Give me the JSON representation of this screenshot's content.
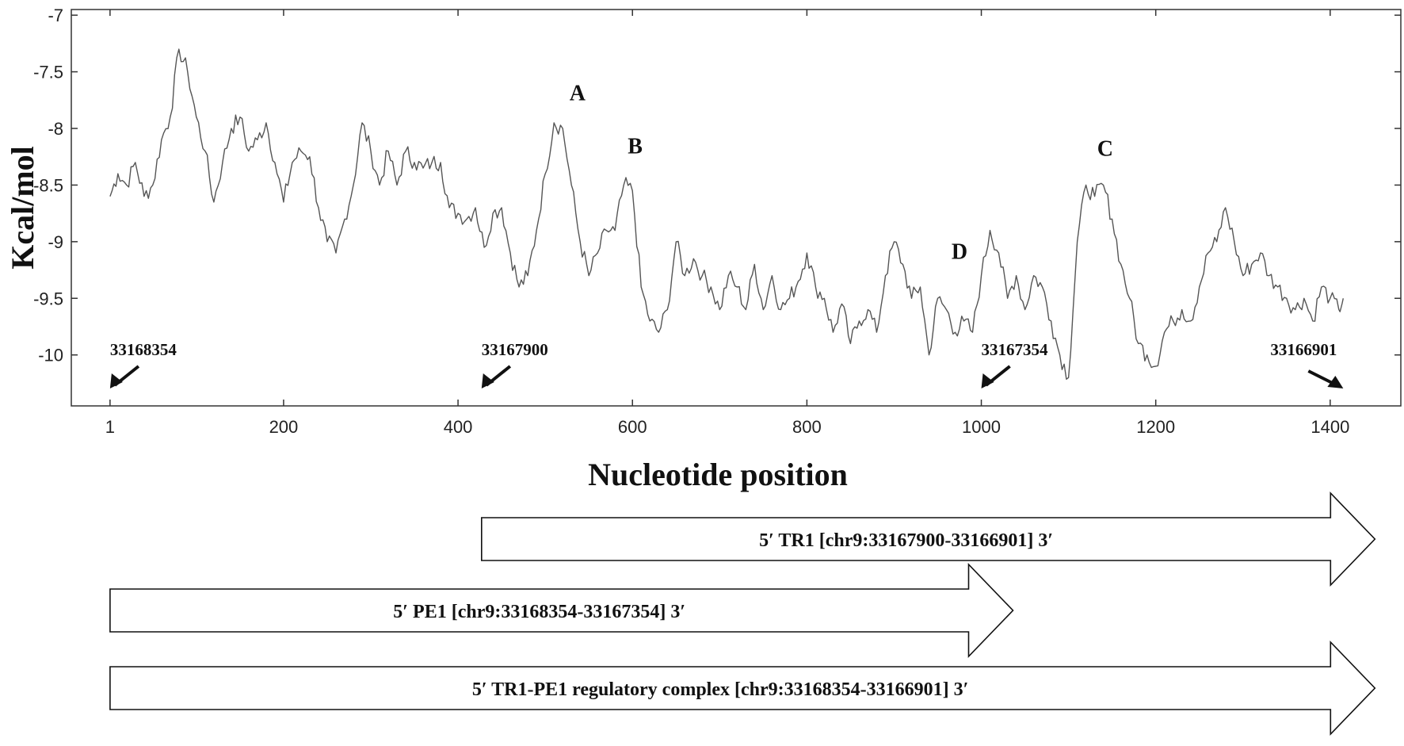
{
  "chart_data": {
    "type": "line",
    "xlabel": "Nucleotide position",
    "ylabel": "Kcal/mol",
    "xlim": [
      1,
      1450
    ],
    "ylim": [
      -10.45,
      -6.95
    ],
    "x_ticks": [
      1,
      200,
      400,
      600,
      800,
      1000,
      1200,
      1400
    ],
    "x_tick_labels": [
      "1",
      "200",
      "400",
      "600",
      "800",
      "1000",
      "1200",
      "1400"
    ],
    "y_ticks": [
      -7,
      -7.5,
      -8,
      -8.5,
      -9,
      -9.5,
      -10
    ],
    "y_tick_labels": [
      "-7",
      "-7.5",
      "-8",
      "-8.5",
      "-9",
      "-9.5",
      "-10"
    ],
    "grid": false,
    "series": [
      {
        "x": [
          1,
          10,
          20,
          30,
          40,
          50,
          60,
          70,
          80,
          90,
          100,
          110,
          120,
          130,
          140,
          150,
          160,
          170,
          180,
          190,
          200,
          210,
          220,
          230,
          240,
          250,
          260,
          270,
          280,
          290,
          300,
          310,
          320,
          330,
          340,
          350,
          360,
          370,
          380,
          390,
          400,
          410,
          420,
          430,
          440,
          450,
          460,
          470,
          480,
          490,
          500,
          510,
          520,
          530,
          540,
          550,
          560,
          570,
          580,
          590,
          600,
          610,
          620,
          630,
          640,
          650,
          660,
          670,
          680,
          690,
          700,
          710,
          720,
          730,
          740,
          750,
          760,
          770,
          780,
          790,
          800,
          810,
          820,
          830,
          840,
          850,
          860,
          870,
          880,
          890,
          900,
          910,
          920,
          930,
          940,
          950,
          960,
          970,
          980,
          990,
          1000,
          1010,
          1020,
          1030,
          1040,
          1050,
          1060,
          1070,
          1080,
          1090,
          1100,
          1110,
          1120,
          1130,
          1140,
          1150,
          1160,
          1170,
          1180,
          1190,
          1200,
          1210,
          1220,
          1230,
          1240,
          1250,
          1260,
          1270,
          1280,
          1290,
          1300,
          1310,
          1320,
          1330,
          1340,
          1350,
          1360,
          1370,
          1380,
          1390,
          1400,
          1410,
          1415
        ],
        "values": [
          -8.6,
          -8.4,
          -8.5,
          -8.3,
          -8.6,
          -8.5,
          -8.1,
          -7.9,
          -7.3,
          -7.5,
          -7.9,
          -8.2,
          -8.65,
          -8.3,
          -8.0,
          -7.9,
          -8.2,
          -8.1,
          -7.95,
          -8.3,
          -8.65,
          -8.3,
          -8.2,
          -8.25,
          -8.7,
          -9.0,
          -9.1,
          -8.8,
          -8.5,
          -7.95,
          -8.2,
          -8.5,
          -8.2,
          -8.5,
          -8.2,
          -8.3,
          -8.35,
          -8.3,
          -8.3,
          -8.7,
          -8.75,
          -8.8,
          -8.7,
          -9.05,
          -8.75,
          -8.7,
          -9.1,
          -9.4,
          -9.3,
          -8.9,
          -8.4,
          -7.95,
          -8.0,
          -8.5,
          -9.0,
          -9.3,
          -9.1,
          -8.9,
          -8.9,
          -8.5,
          -8.55,
          -9.4,
          -9.7,
          -9.8,
          -9.6,
          -9.0,
          -9.3,
          -9.15,
          -9.3,
          -9.4,
          -9.6,
          -9.3,
          -9.4,
          -9.6,
          -9.2,
          -9.6,
          -9.3,
          -9.6,
          -9.5,
          -9.35,
          -9.1,
          -9.4,
          -9.5,
          -9.8,
          -9.55,
          -9.9,
          -9.7,
          -9.6,
          -9.8,
          -9.3,
          -9.0,
          -9.2,
          -9.5,
          -9.4,
          -10.0,
          -9.5,
          -9.6,
          -9.8,
          -9.7,
          -9.8,
          -9.3,
          -8.9,
          -9.1,
          -9.5,
          -9.3,
          -9.6,
          -9.3,
          -9.4,
          -9.7,
          -10.0,
          -10.2,
          -9.0,
          -8.5,
          -8.6,
          -8.5,
          -8.8,
          -9.2,
          -9.5,
          -9.9,
          -10.0,
          -10.1,
          -9.8,
          -9.7,
          -9.6,
          -9.7,
          -9.4,
          -9.1,
          -9.0,
          -8.7,
          -9.0,
          -9.3,
          -9.2,
          -9.1,
          -9.3,
          -9.4,
          -9.5,
          -9.6,
          -9.5,
          -9.7,
          -9.4,
          -9.5,
          -9.6,
          -9.5
        ]
      }
    ],
    "peak_annotations": [
      {
        "text": "A",
        "x": 537,
        "y": -7.75
      },
      {
        "text": "B",
        "x": 603,
        "y": -8.22
      },
      {
        "text": "C",
        "x": 1142,
        "y": -8.24
      },
      {
        "text": "D",
        "x": 975,
        "y": -9.15
      }
    ],
    "position_annotations": [
      {
        "text": "33168354",
        "x": 1,
        "arrow": "down-left"
      },
      {
        "text": "33167900",
        "x": 427,
        "arrow": "down-left"
      },
      {
        "text": "33167354",
        "x": 1000,
        "arrow": "down-left"
      },
      {
        "text": "33166901",
        "x": 1415,
        "arrow": "down-right"
      }
    ],
    "regions": [
      {
        "label": "5′  TR1 [chr9:33167900-33166901] 3′",
        "start": 427,
        "end": 1415
      },
      {
        "label": "5′  PE1 [chr9:33168354-33167354]  3′",
        "start": 1,
        "end": 1000
      },
      {
        "label": "5′  TR1-PE1 regulatory complex [chr9:33168354-33166901]  3′",
        "start": 1,
        "end": 1415
      }
    ]
  }
}
